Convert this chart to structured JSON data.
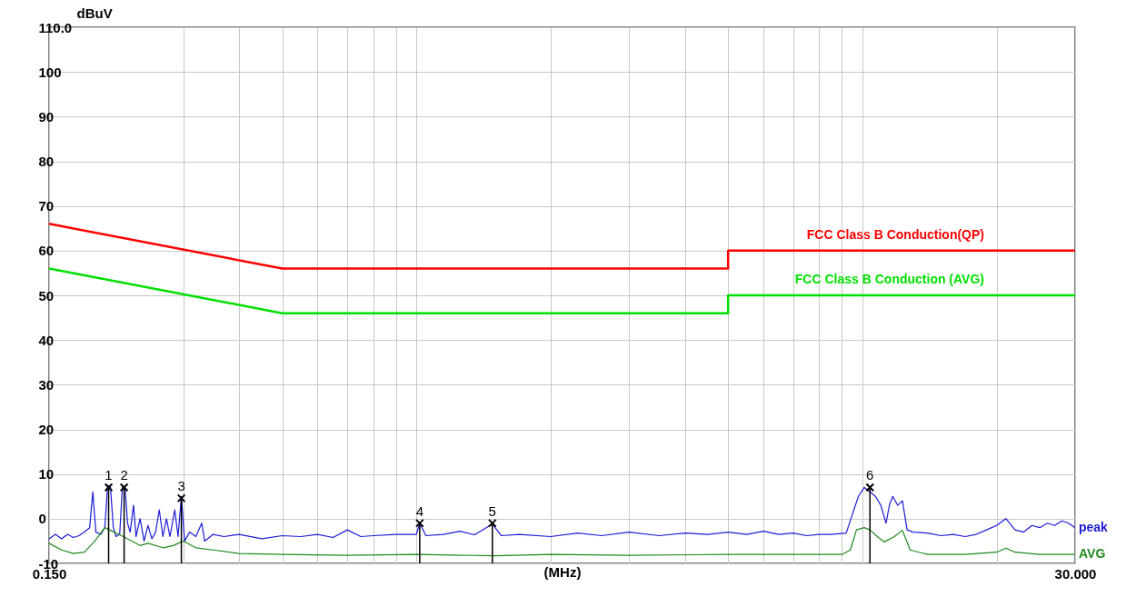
{
  "chart_data": {
    "type": "line",
    "xlabel": "(MHz)",
    "ylabel": "dBuV",
    "log": "x",
    "grid": true,
    "xlim": [
      0.15,
      30
    ],
    "ylim": [
      -10,
      110
    ],
    "xticks": [
      {
        "value": 0.15,
        "label": "0.150"
      },
      {
        "value": 0.3,
        "label": null
      },
      {
        "value": 0.4,
        "label": null
      },
      {
        "value": 0.5,
        "label": null
      },
      {
        "value": 0.6,
        "label": null
      },
      {
        "value": 0.7,
        "label": null
      },
      {
        "value": 0.8,
        "label": null
      },
      {
        "value": 0.9,
        "label": null
      },
      {
        "value": 1,
        "label": null
      },
      {
        "value": 2,
        "label": null
      },
      {
        "value": 3,
        "label": null
      },
      {
        "value": 4,
        "label": null
      },
      {
        "value": 5,
        "label": null
      },
      {
        "value": 6,
        "label": null
      },
      {
        "value": 7,
        "label": null
      },
      {
        "value": 8,
        "label": null
      },
      {
        "value": 9,
        "label": null
      },
      {
        "value": 10,
        "label": null
      },
      {
        "value": 20,
        "label": null
      },
      {
        "value": 30,
        "label": "30.000"
      }
    ],
    "yticks": [
      -10,
      0,
      10,
      20,
      30,
      40,
      50,
      60,
      70,
      80,
      90,
      100,
      {
        "value": 110,
        "label": "110.0"
      }
    ],
    "series": [
      {
        "name": "FCC Class B Conduction(QP)",
        "color": "#ff0000",
        "x": [
          0.15,
          0.5,
          5,
          5,
          30
        ],
        "values": [
          66,
          56,
          56,
          60,
          60
        ]
      },
      {
        "name": "FCC Class B Conduction (AVG)",
        "color": "#00e000",
        "x": [
          0.15,
          0.5,
          5,
          5,
          30
        ],
        "values": [
          56,
          46,
          46,
          50,
          50
        ]
      },
      {
        "name": "peak",
        "color": "#1c1cd6",
        "x": [
          0.15,
          0.155,
          0.16,
          0.165,
          0.17,
          0.175,
          0.18,
          0.185,
          0.188,
          0.191,
          0.196,
          0.2,
          0.203,
          0.206,
          0.209,
          0.212,
          0.216,
          0.219,
          0.222,
          0.225,
          0.228,
          0.232,
          0.235,
          0.24,
          0.245,
          0.25,
          0.255,
          0.26,
          0.265,
          0.27,
          0.275,
          0.28,
          0.287,
          0.292,
          0.297,
          0.302,
          0.31,
          0.32,
          0.33,
          0.335,
          0.35,
          0.37,
          0.4,
          0.45,
          0.5,
          0.55,
          0.6,
          0.65,
          0.7,
          0.75,
          0.8,
          0.9,
          1.0,
          1.017,
          1.05,
          1.15,
          1.25,
          1.35,
          1.48,
          1.55,
          1.7,
          2.0,
          2.3,
          2.6,
          3.0,
          3.5,
          4.0,
          4.5,
          5.0,
          5.5,
          6,
          6.5,
          7,
          7.5,
          8,
          8.5,
          9.2,
          9.5,
          9.8,
          10.1,
          10.4,
          10.7,
          11.0,
          11.3,
          11.5,
          11.7,
          12.0,
          12.3,
          12.6,
          13,
          14,
          15,
          16,
          17,
          18,
          19,
          20,
          21,
          22,
          23,
          24,
          25,
          26,
          27,
          28,
          29,
          30
        ],
        "values": [
          -4.5,
          -3.5,
          -4.5,
          -3.5,
          -4.2,
          -3.8,
          -3,
          -2,
          6,
          -3,
          -3.5,
          -2,
          7.5,
          7,
          -2,
          -4,
          -3.5,
          7,
          7,
          -1,
          -3,
          3,
          -4,
          0,
          -5,
          -1.5,
          -4.5,
          -3,
          2,
          -4,
          0,
          -4,
          2,
          -4,
          5,
          -5,
          -3,
          -4,
          -1,
          -5,
          -3.5,
          -4,
          -3.5,
          -4.5,
          -3.8,
          -4,
          -3.5,
          -4.2,
          -2.5,
          -4,
          -3.8,
          -3.5,
          -3.5,
          -1,
          -3.8,
          -3.5,
          -2.8,
          -3.6,
          -1.2,
          -3.8,
          -3.5,
          -4,
          -3.2,
          -3.8,
          -3,
          -3.8,
          -3.2,
          -3.5,
          -3,
          -3.5,
          -2.8,
          -3.5,
          -3.2,
          -3.8,
          -3.5,
          -3.5,
          -3.2,
          1,
          5,
          7,
          6,
          5,
          3,
          -1,
          3,
          5,
          3,
          4,
          -2.5,
          -3,
          -3.2,
          -3.8,
          -3.5,
          -4,
          -3.5,
          -2.5,
          -1.5,
          0,
          -2.5,
          -3,
          -1.5,
          -2,
          -1,
          -1.5,
          -0.5,
          -1,
          -2
        ]
      },
      {
        "name": "AVG",
        "color": "#1e8a1e",
        "x": [
          0.15,
          0.16,
          0.17,
          0.18,
          0.19,
          0.2,
          0.21,
          0.22,
          0.23,
          0.24,
          0.25,
          0.27,
          0.285,
          0.3,
          0.32,
          0.35,
          0.4,
          0.5,
          0.7,
          1,
          1.5,
          2,
          3,
          5,
          7,
          9,
          9.4,
          9.7,
          10.1,
          10.4,
          10.8,
          11.2,
          11.8,
          12.3,
          12.8,
          14,
          17,
          20,
          21,
          22,
          25,
          30
        ],
        "values": [
          -5.5,
          -7,
          -7.8,
          -7.5,
          -5,
          -2,
          -3,
          -4,
          -5,
          -6,
          -5.5,
          -6.5,
          -6,
          -5,
          -6.5,
          -7,
          -7.8,
          -8,
          -8.2,
          -8,
          -8.3,
          -8,
          -8.2,
          -8,
          -8,
          -8,
          -7,
          -2.5,
          -2,
          -2.5,
          -4,
          -5.2,
          -4,
          -2.6,
          -7,
          -8,
          -8,
          -7.5,
          -6.6,
          -7.5,
          -8,
          -8
        ]
      }
    ],
    "annotations": [
      {
        "text": "1",
        "x": 0.204,
        "y": 7
      },
      {
        "text": "2",
        "x": 0.221,
        "y": 7
      },
      {
        "text": "3",
        "x": 0.297,
        "y": 4.6
      },
      {
        "text": "4",
        "x": 1.017,
        "y": -1
      },
      {
        "text": "5",
        "x": 1.48,
        "y": -1
      },
      {
        "text": "6",
        "x": 10.4,
        "y": 7
      }
    ]
  }
}
